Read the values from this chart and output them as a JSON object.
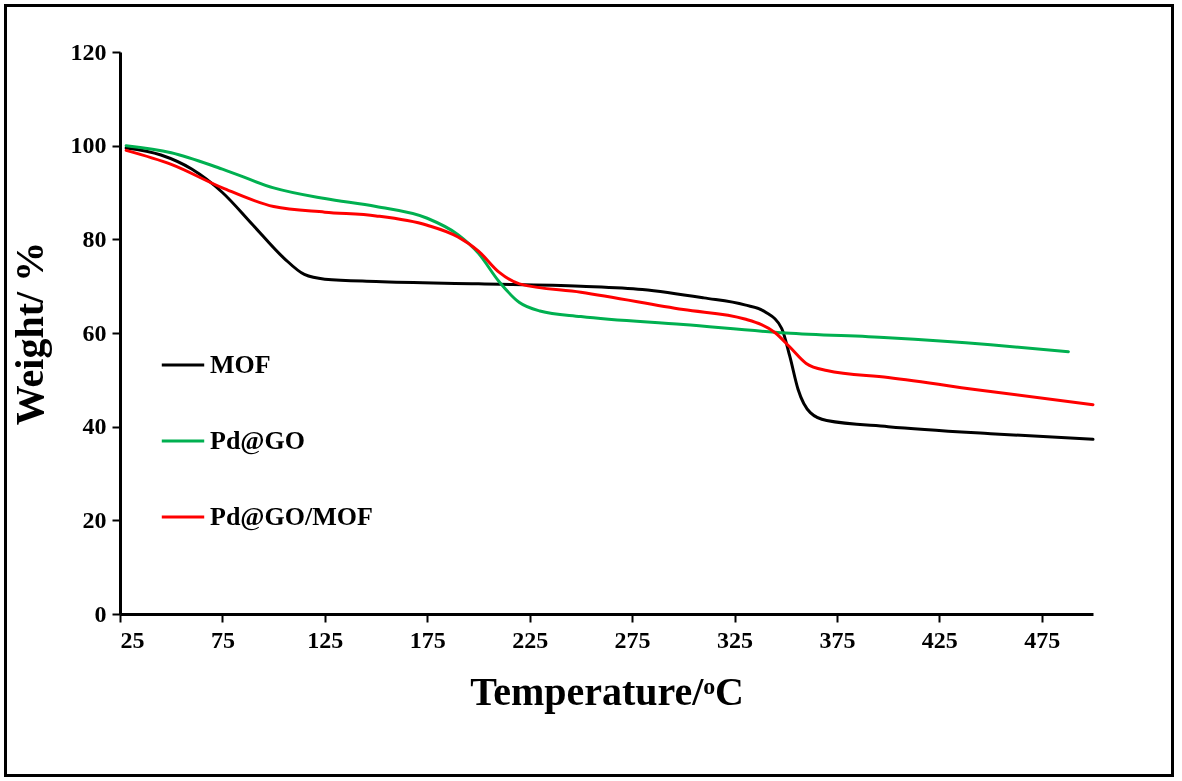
{
  "chart_data": {
    "type": "line",
    "xlabel": "Temperature/ᵒC",
    "ylabel": "Weight/ %",
    "xlim": [
      25,
      500
    ],
    "xticks": [
      25,
      75,
      125,
      175,
      225,
      275,
      325,
      375,
      425,
      475
    ],
    "ylim": [
      0,
      120
    ],
    "yticks": [
      0,
      20,
      40,
      60,
      80,
      100,
      120
    ],
    "grid": false,
    "legend": "left",
    "marker": "none",
    "line_style": "solid",
    "series": [
      {
        "name": "MOF",
        "color": "#000000",
        "x": [
          28,
          45,
          60,
          75,
          90,
          105,
          115,
          125,
          150,
          200,
          250,
          280,
          310,
          330,
          340,
          348,
          352,
          356,
          362,
          370,
          400,
          450,
          500
        ],
        "values": [
          99.5,
          98,
          95,
          90,
          83,
          76,
          72.5,
          71.5,
          71,
          70.5,
          70,
          69.3,
          67.5,
          66,
          64.5,
          61,
          55,
          48,
          43,
          41.3,
          40,
          38.5,
          37.3
        ]
      },
      {
        "name": "Pd@GO",
        "color": "#00b050",
        "x": [
          28,
          50,
          75,
          100,
          125,
          150,
          175,
          190,
          200,
          210,
          220,
          230,
          250,
          300,
          350,
          400,
          450,
          488
        ],
        "values": [
          100,
          98.5,
          95,
          91,
          88.7,
          87,
          84.5,
          81,
          77,
          71,
          66.5,
          64.7,
          63.5,
          61.8,
          60,
          59,
          57.5,
          56
        ]
      },
      {
        "name": "Pd@GO/MOF",
        "color": "#ff0000",
        "x": [
          28,
          50,
          75,
          100,
          125,
          150,
          175,
          190,
          200,
          210,
          220,
          250,
          300,
          330,
          345,
          352,
          360,
          370,
          400,
          450,
          500
        ],
        "values": [
          99,
          96,
          91,
          87,
          85.8,
          85,
          83,
          80.5,
          77.5,
          73,
          70.5,
          68.7,
          65,
          63,
          60,
          57,
          53.5,
          52,
          50.5,
          47.5,
          44.7
        ]
      }
    ]
  }
}
